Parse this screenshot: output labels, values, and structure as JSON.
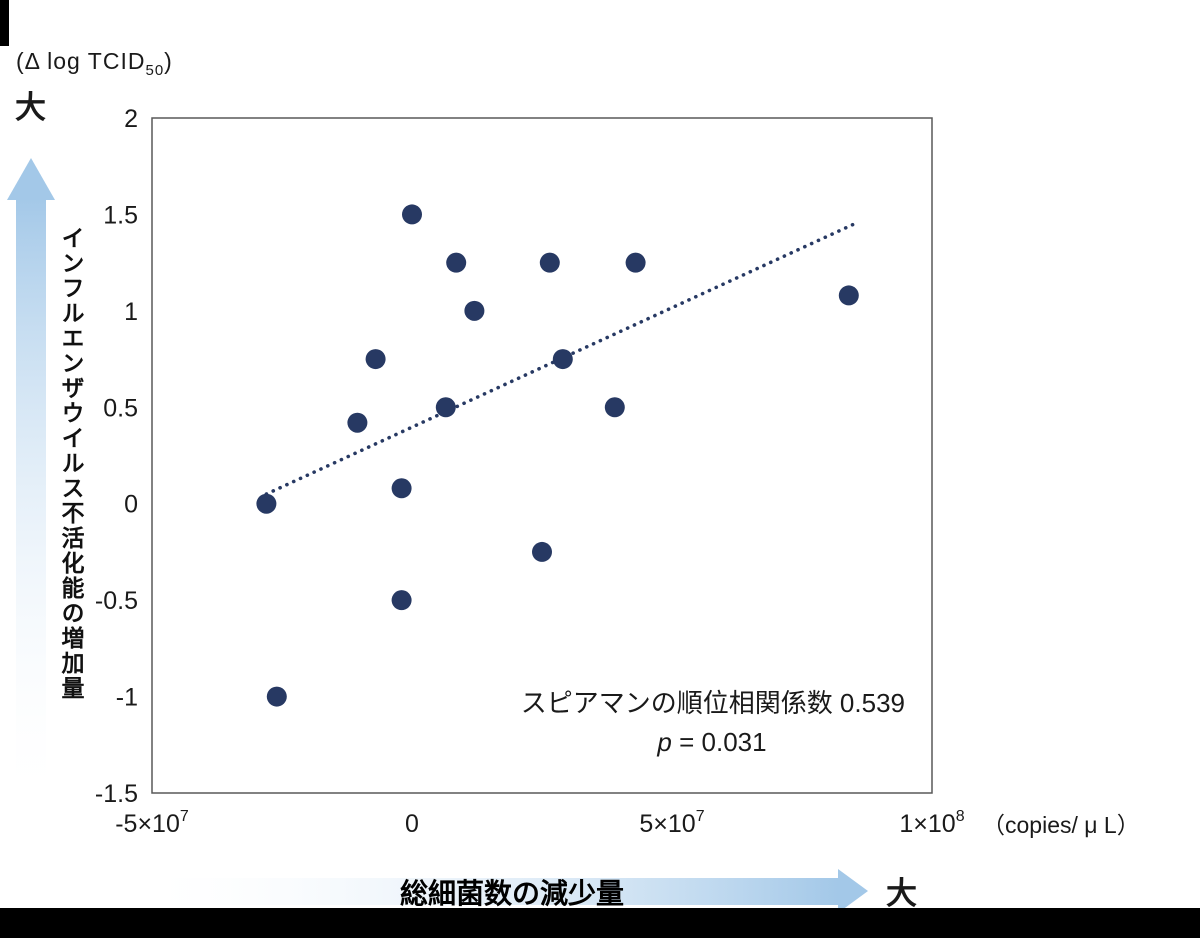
{
  "page": {
    "background": "#ffffff",
    "edge_bar_color": "#000000"
  },
  "chart_data": {
    "type": "scatter",
    "title": "",
    "y_unit": {
      "prefix": "(Δ log TCID",
      "sub": "50",
      "suffix": ")"
    },
    "x_unit_label": "（copies/ μ L）",
    "y_axis_title": "インフルエンザウイルス不活化能の増加量",
    "x_axis_title": "総細菌数の減少量",
    "direction_label_top": "大",
    "direction_label_right": "大",
    "xlim": [
      -50000000,
      100000000
    ],
    "ylim": [
      -1.5,
      2
    ],
    "x_ticks": [
      {
        "text": "-5×10",
        "sup": "7",
        "value": -50000000
      },
      {
        "text": "0",
        "sup": "",
        "value": 0
      },
      {
        "text": "5×10",
        "sup": "7",
        "value": 50000000
      },
      {
        "text": "1×10",
        "sup": "8",
        "value": 100000000
      }
    ],
    "y_ticks": [
      {
        "text": "2",
        "value": 2
      },
      {
        "text": "1.5",
        "value": 1.5
      },
      {
        "text": "1",
        "value": 1
      },
      {
        "text": "0.5",
        "value": 0.5
      },
      {
        "text": "0",
        "value": 0
      },
      {
        "text": "-0.5",
        "value": -0.5
      },
      {
        "text": "-1",
        "value": -1
      },
      {
        "text": "-1.5",
        "value": -1.5
      }
    ],
    "points": [
      [
        -28000000,
        0.0
      ],
      [
        -26000000,
        -1.0
      ],
      [
        -10500000,
        0.42
      ],
      [
        -7000000,
        0.75
      ],
      [
        0,
        1.5
      ],
      [
        -2000000,
        0.08
      ],
      [
        -2000000,
        -0.5
      ],
      [
        6500000,
        0.5
      ],
      [
        8500000,
        1.25
      ],
      [
        12000000,
        1.0
      ],
      [
        25000000,
        -0.25
      ],
      [
        26500000,
        1.25
      ],
      [
        29000000,
        0.75
      ],
      [
        39000000,
        0.5
      ],
      [
        43000000,
        1.25
      ],
      [
        84000000,
        1.08
      ]
    ],
    "trend_line": {
      "style": "dotted",
      "x1": -28000000,
      "y1": 0.05,
      "x2": 85000000,
      "y2": 1.45
    },
    "stats": {
      "spearman_rho": 0.539,
      "p_value": 0.031
    },
    "annotation": {
      "line1": "スピアマンの順位相関係数 0.539",
      "p_italic": "p",
      "p_rest": " = 0.031"
    },
    "colors": {
      "point": "#27396331",
      "point_solid": "#273963",
      "trend": "#273963",
      "frame": "#595959",
      "text": "#1a1a1a",
      "arrow_from": "#fdfeff",
      "arrow_to": "#a3c8e8"
    },
    "legend": "none",
    "grid": "off"
  }
}
